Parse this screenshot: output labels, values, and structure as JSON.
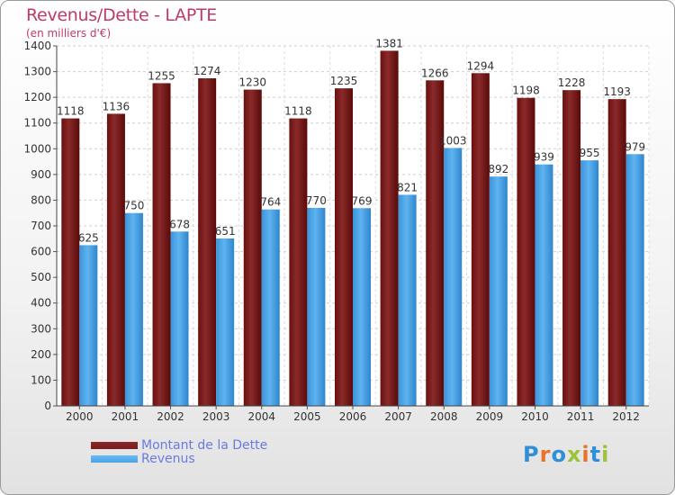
{
  "chart_data": {
    "type": "bar",
    "title": "Revenus/Dette - LAPTE",
    "subtitle": "(en milliers d'€)",
    "categories": [
      "2000",
      "2001",
      "2002",
      "2003",
      "2004",
      "2005",
      "2006",
      "2007",
      "2008",
      "2009",
      "2010",
      "2011",
      "2012"
    ],
    "series": [
      {
        "name": "Montant de la Dette",
        "color": "#7a1c1c",
        "values": [
          1118,
          1136,
          1255,
          1274,
          1230,
          1118,
          1235,
          1381,
          1266,
          1294,
          1198,
          1228,
          1193
        ]
      },
      {
        "name": "Revenus",
        "color": "#4aa3e6",
        "values": [
          625,
          750,
          678,
          651,
          764,
          770,
          769,
          821,
          1003,
          892,
          939,
          955,
          979
        ]
      }
    ],
    "ylim": [
      0,
      1400
    ],
    "yticks": [
      0,
      100,
      200,
      300,
      400,
      500,
      600,
      700,
      800,
      900,
      1000,
      1100,
      1200,
      1300,
      1400
    ],
    "grid": true,
    "legend_position": "bottom-left"
  },
  "logo": {
    "text": "Proxiti",
    "letters": [
      "P",
      "r",
      "o",
      "x",
      "i",
      "t",
      "i"
    ],
    "colors": [
      "#2f8fd8",
      "#e8742a",
      "#2f8fd8",
      "#9bc43a",
      "#e8742a",
      "#2f8fd8",
      "#9bc43a"
    ]
  }
}
